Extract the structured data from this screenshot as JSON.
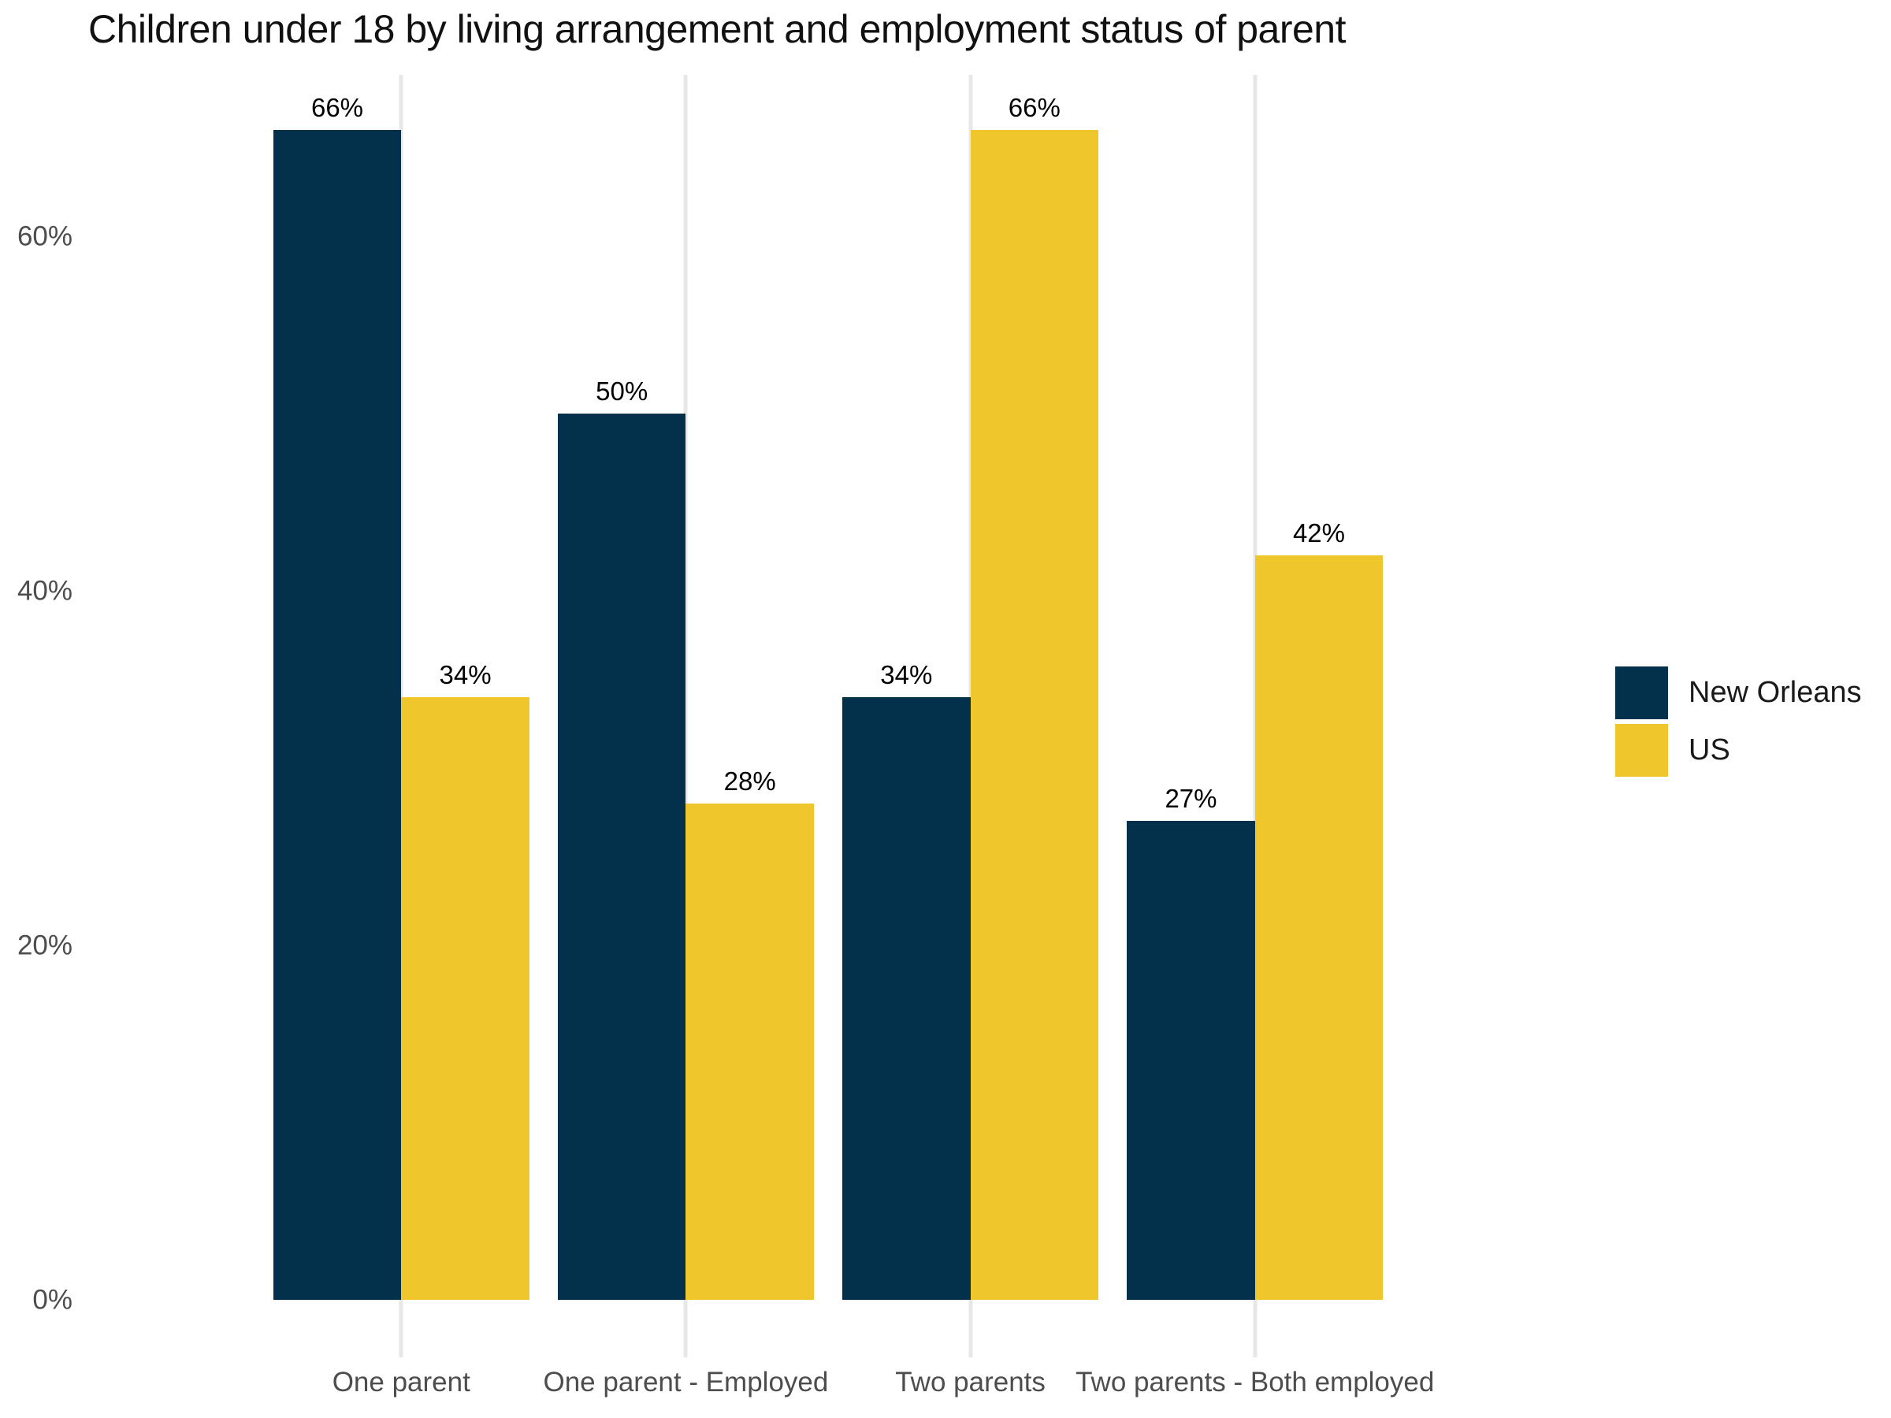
{
  "chart_data": {
    "type": "bar",
    "title": "Children under 18 by living arrangement and employment status of parent",
    "categories": [
      "One parent",
      "One parent - Employed",
      "Two parents",
      "Two parents - Both employed"
    ],
    "series": [
      {
        "name": "New Orleans",
        "color": "#03304a",
        "values": [
          66,
          50,
          34,
          27
        ],
        "value_labels": [
          "66%",
          "50%",
          "34%",
          "27%"
        ]
      },
      {
        "name": "US",
        "color": "#f0c62d",
        "values": [
          34,
          28,
          66,
          42
        ],
        "value_labels": [
          "34%",
          "28%",
          "66%",
          "42%"
        ]
      }
    ],
    "y_axis": {
      "tick_values": [
        0,
        20,
        40,
        60
      ],
      "tick_labels": [
        "0%",
        "20%",
        "40%",
        "60%"
      ],
      "max": 69.1
    },
    "xlabel": "",
    "ylabel": "",
    "legend_position": "right",
    "grid": "vertical light-gray lines at category centers extending below baseline as ticks",
    "bars": "dodged pairs touching at category center, no x-axis line"
  },
  "colors": {
    "background": "#ffffff",
    "gridline": "#e7e7e7",
    "axis_text": "#4d4d4d",
    "title_text": "#111111",
    "value_label_text": "#000000",
    "legend_text": "#1a1a1a"
  }
}
